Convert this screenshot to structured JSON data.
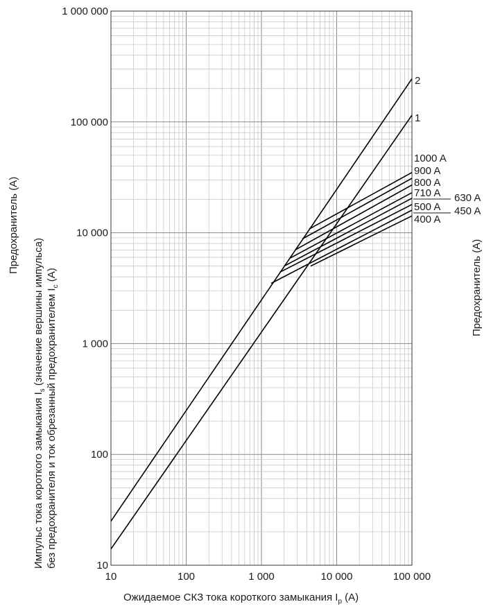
{
  "chart_data": {
    "type": "line",
    "xscale": "log",
    "yscale": "log",
    "xlim": [
      10,
      100000
    ],
    "ylim": [
      10,
      1000000
    ],
    "grid": true,
    "x_ticks": [
      10,
      100,
      1000,
      10000,
      100000
    ],
    "y_ticks": [
      10,
      100,
      1000,
      10000,
      100000,
      1000000
    ],
    "x_tick_labels": [
      "10",
      "100",
      "1 000",
      "10 000",
      "100 000"
    ],
    "y_tick_labels": [
      "10",
      "100",
      "1 000",
      "10 000",
      "100 000",
      "1 000 000"
    ],
    "xlabel": "Ожидаемое СКЗ тока короткого замыкания I",
    "xlabel_sub": "p",
    "xlabel_unit": " (A)",
    "ylabel_line1": "Импульс тока короткого замыкания I",
    "ylabel_line1_sub": "s",
    "ylabel_line1_end": " (значение вершины импульса)",
    "ylabel_line2": "без предохранителя и ток обрезанный предохранителем I",
    "ylabel_line2_sub": "c",
    "ylabel_line2_end": " (A)",
    "left_group_label": "Предохранитель (A)",
    "right_group_label": "Предохранитель (A)",
    "series": [
      {
        "name": "2",
        "x": [
          10,
          100000
        ],
        "y": [
          25,
          245000
        ]
      },
      {
        "name": "1",
        "x": [
          10,
          100000
        ],
        "y": [
          14,
          115000
        ]
      },
      {
        "name": "1000 A",
        "x": [
          4300,
          100000
        ],
        "y": [
          10800,
          35000
        ]
      },
      {
        "name": "900 A",
        "x": [
          3500,
          100000
        ],
        "y": [
          8800,
          31000
        ]
      },
      {
        "name": "800 A",
        "x": [
          2800,
          100000
        ],
        "y": [
          7000,
          27000
        ]
      },
      {
        "name": "710 A",
        "x": [
          2400,
          100000
        ],
        "y": [
          5900,
          23000
        ]
      },
      {
        "name": "630 A",
        "x": [
          2000,
          100000
        ],
        "y": [
          5000,
          20500
        ]
      },
      {
        "name": "500 A",
        "x": [
          1750,
          100000
        ],
        "y": [
          4400,
          18000
        ]
      },
      {
        "name": "450 A",
        "x": [
          1350,
          100000
        ],
        "y": [
          3500,
          16000
        ]
      },
      {
        "name": "400 A",
        "x": [
          4500,
          100000
        ],
        "y": [
          5000,
          14200
        ]
      }
    ],
    "right_labels_col1": [
      "1000 A",
      "900 A",
      "800 A",
      "710 A",
      "500 A",
      "400 A"
    ],
    "right_labels_col2": [
      "630 A",
      "450 A"
    ],
    "curve_labels": [
      "2",
      "1"
    ]
  }
}
